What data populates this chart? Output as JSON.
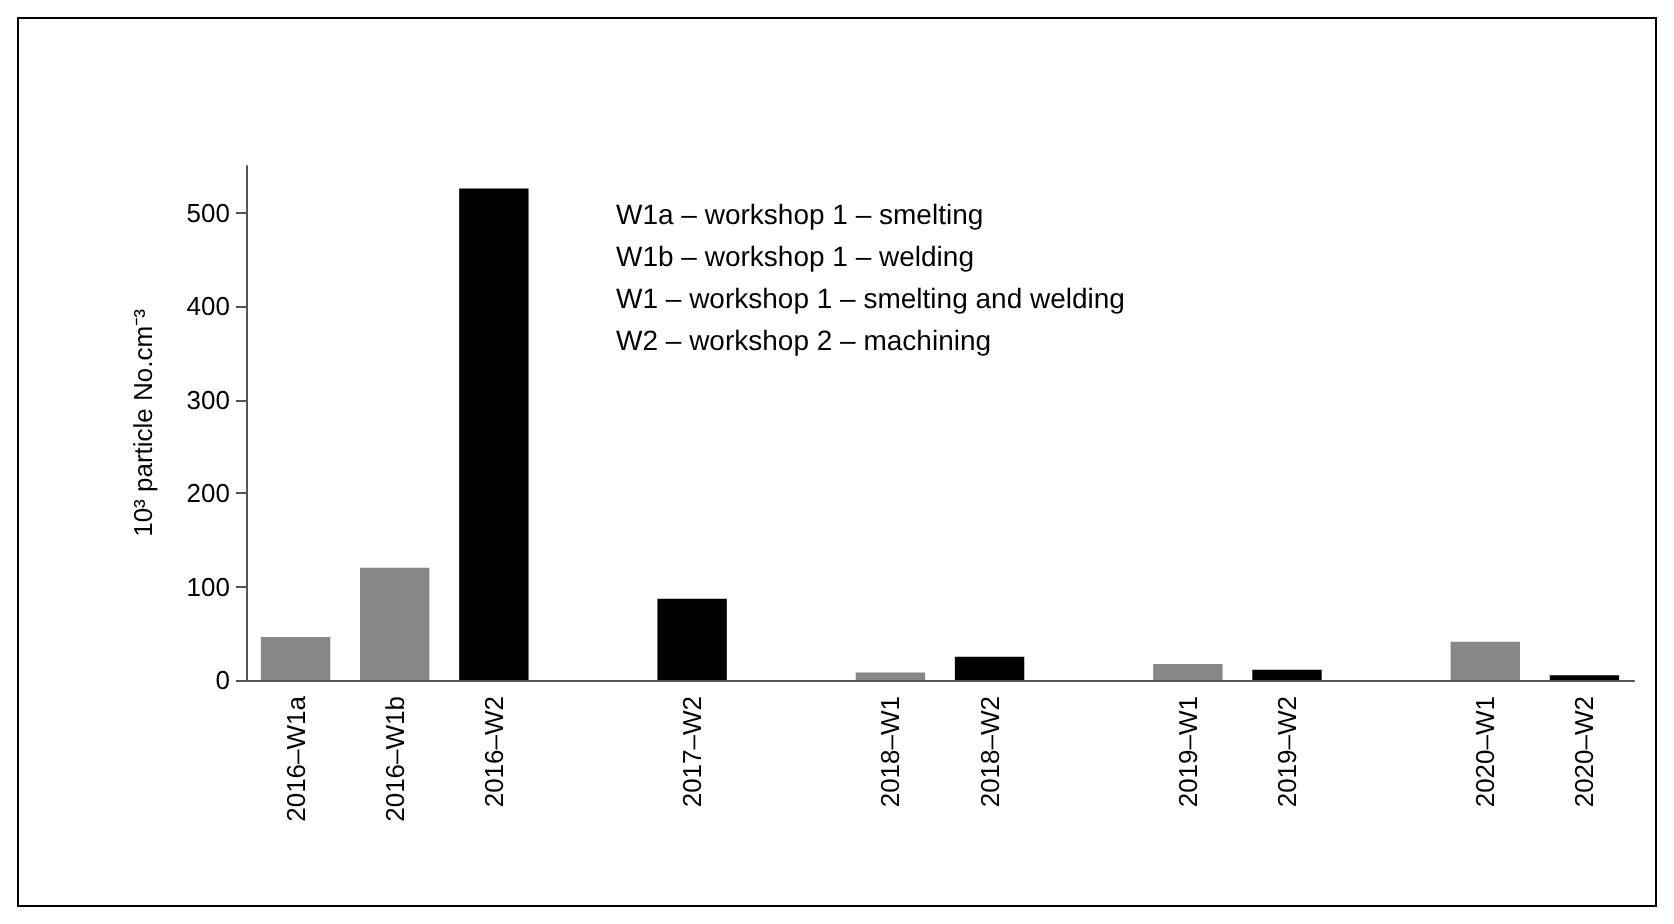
{
  "chart_data": {
    "type": "bar",
    "ylabel": "10³ particle No.cm⁻³",
    "categories": [
      "2016–W1a",
      "2016–W1b",
      "2016–W2",
      null,
      "2017–W2",
      null,
      "2018–W1",
      "2018–W2",
      null,
      "2019–W1",
      "2019–W2",
      null,
      "2020–W1",
      "2020–W2"
    ],
    "values": [
      46,
      120,
      526,
      null,
      87,
      null,
      8,
      25,
      null,
      17,
      11,
      null,
      41,
      5
    ],
    "colors": [
      "#878787",
      "#878787",
      "#000000",
      "#000000",
      "#000000",
      "#000000",
      "#878787",
      "#000000",
      "#000000",
      "#878787",
      "#000000",
      "#000000",
      "#878787",
      "#000000"
    ],
    "ylim": [
      0,
      550
    ],
    "yticks": [
      0,
      100,
      200,
      300,
      400,
      500
    ],
    "grid": false,
    "annotations": [
      "W1a – workshop 1 – smelting",
      "W1b – workshop 1 – welding",
      "W1 – workshop 1 – smelting and welding",
      "W2 – workshop 2 – machining"
    ]
  }
}
